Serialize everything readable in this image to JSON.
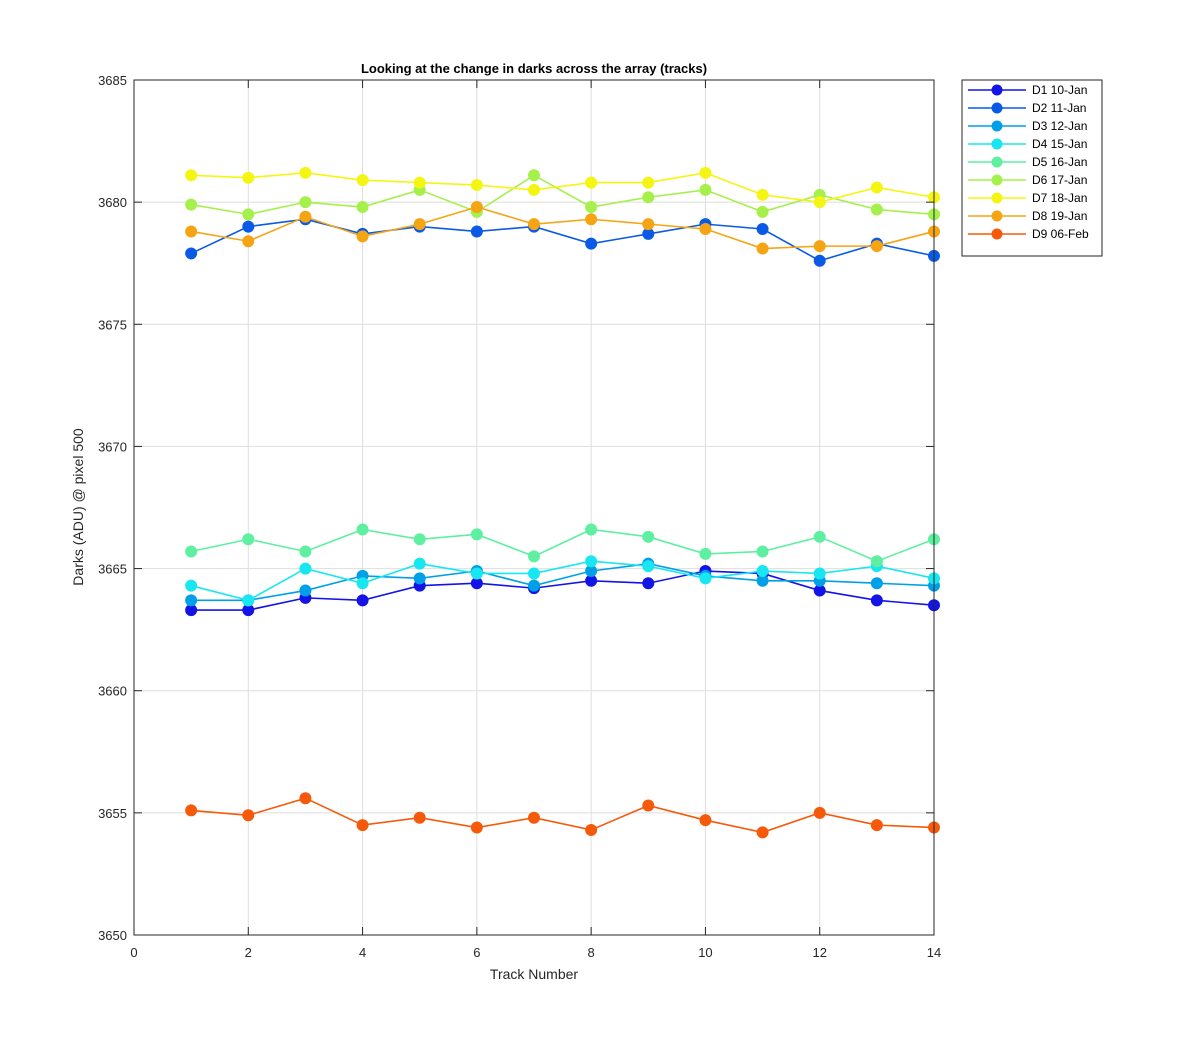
{
  "chart_data": {
    "type": "line",
    "title": "Looking at the change in darks across the array (tracks)",
    "xlabel": "Track Number",
    "ylabel": "Darks (ADU) @ pixel 500",
    "xlim": [
      0,
      14
    ],
    "ylim": [
      3650,
      3685
    ],
    "xticks": [
      0,
      2,
      4,
      6,
      8,
      10,
      12,
      14
    ],
    "yticks": [
      3650,
      3655,
      3660,
      3665,
      3670,
      3675,
      3680,
      3685
    ],
    "grid": true,
    "legend_position": "outside-top-right",
    "x": [
      1,
      2,
      3,
      4,
      5,
      6,
      7,
      8,
      9,
      10,
      11,
      12,
      13,
      14
    ],
    "series": [
      {
        "name": "D1 10-Jan",
        "color": "#1414e6",
        "values": [
          3663.3,
          3663.3,
          3663.8,
          3663.7,
          3664.3,
          3664.4,
          3664.2,
          3664.5,
          3664.4,
          3664.9,
          3664.8,
          3664.1,
          3663.7,
          3663.5
        ]
      },
      {
        "name": "D2 11-Jan",
        "color": "#0a5ae6",
        "values": [
          3677.9,
          3679.0,
          3679.3,
          3678.7,
          3679.0,
          3678.8,
          3679.0,
          3678.3,
          3678.7,
          3679.1,
          3678.9,
          3677.6,
          3678.3,
          3677.8
        ]
      },
      {
        "name": "D3 12-Jan",
        "color": "#00a0e8",
        "values": [
          3663.7,
          3663.7,
          3664.1,
          3664.7,
          3664.6,
          3664.9,
          3664.3,
          3664.9,
          3665.2,
          3664.7,
          3664.5,
          3664.5,
          3664.4,
          3664.3
        ]
      },
      {
        "name": "D4 15-Jan",
        "color": "#18e6f0",
        "values": [
          3664.3,
          3663.7,
          3665.0,
          3664.4,
          3665.2,
          3664.8,
          3664.8,
          3665.3,
          3665.1,
          3664.6,
          3664.9,
          3664.8,
          3665.1,
          3664.6
        ]
      },
      {
        "name": "D5 16-Jan",
        "color": "#5ef0a0",
        "values": [
          3665.7,
          3666.2,
          3665.7,
          3666.6,
          3666.2,
          3666.4,
          3665.5,
          3666.6,
          3666.3,
          3665.6,
          3665.7,
          3666.3,
          3665.3,
          3666.2
        ]
      },
      {
        "name": "D6 17-Jan",
        "color": "#a6f04c",
        "values": [
          3679.9,
          3679.5,
          3680.0,
          3679.8,
          3680.5,
          3679.6,
          3681.1,
          3679.8,
          3680.2,
          3680.5,
          3679.6,
          3680.3,
          3679.7,
          3679.5
        ]
      },
      {
        "name": "D7 18-Jan",
        "color": "#f5f514",
        "values": [
          3681.1,
          3681.0,
          3681.2,
          3680.9,
          3680.8,
          3680.7,
          3680.5,
          3680.8,
          3680.8,
          3681.2,
          3680.3,
          3680.0,
          3680.6,
          3680.2
        ]
      },
      {
        "name": "D8 19-Jan",
        "color": "#f5a514",
        "values": [
          3678.8,
          3678.4,
          3679.4,
          3678.6,
          3679.1,
          3679.8,
          3679.1,
          3679.3,
          3679.1,
          3678.9,
          3678.1,
          3678.2,
          3678.2,
          3678.8
        ]
      },
      {
        "name": "D9 06-Feb",
        "color": "#f55a0a",
        "values": [
          3655.1,
          3654.9,
          3655.6,
          3654.5,
          3654.8,
          3654.4,
          3654.8,
          3654.3,
          3655.3,
          3654.7,
          3654.2,
          3655.0,
          3654.5,
          3654.4
        ]
      }
    ]
  }
}
